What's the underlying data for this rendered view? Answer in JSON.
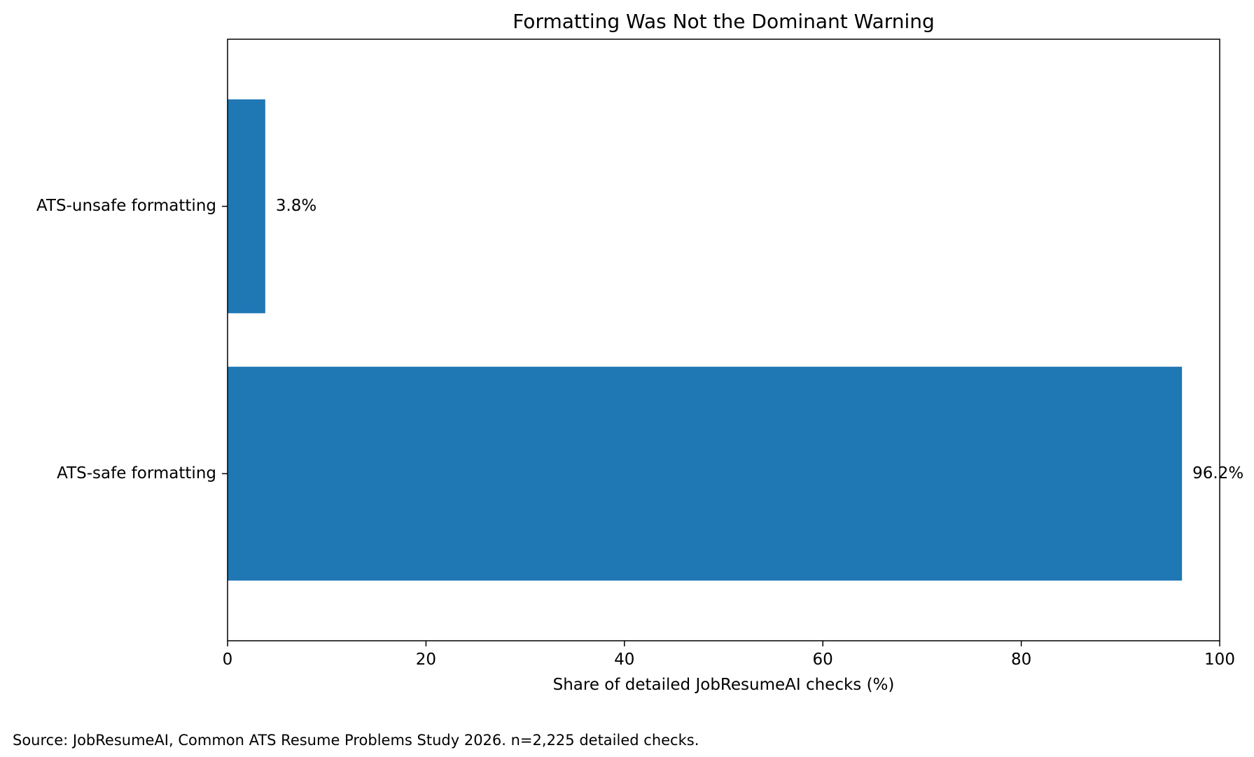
{
  "chart_data": {
    "type": "bar",
    "orientation": "horizontal",
    "title": "Formatting Was Not the Dominant Warning",
    "xlabel": "Share of detailed JobResumeAI checks (%)",
    "ylabel": "",
    "categories": [
      "ATS-unsafe formatting",
      "ATS-safe formatting"
    ],
    "values": [
      3.8,
      96.2
    ],
    "data_labels": [
      "3.8%",
      "96.2%"
    ],
    "xlim": [
      0,
      100
    ],
    "xticks": [
      0,
      20,
      40,
      60,
      80,
      100
    ],
    "xtick_labels": [
      "0",
      "20",
      "40",
      "60",
      "80",
      "100"
    ],
    "grid": false,
    "legend": "none",
    "bar_color": "#1f77b4"
  },
  "source_note": "Source: JobResumeAI, Common ATS Resume Problems Study 2026. n=2,225 detailed checks."
}
